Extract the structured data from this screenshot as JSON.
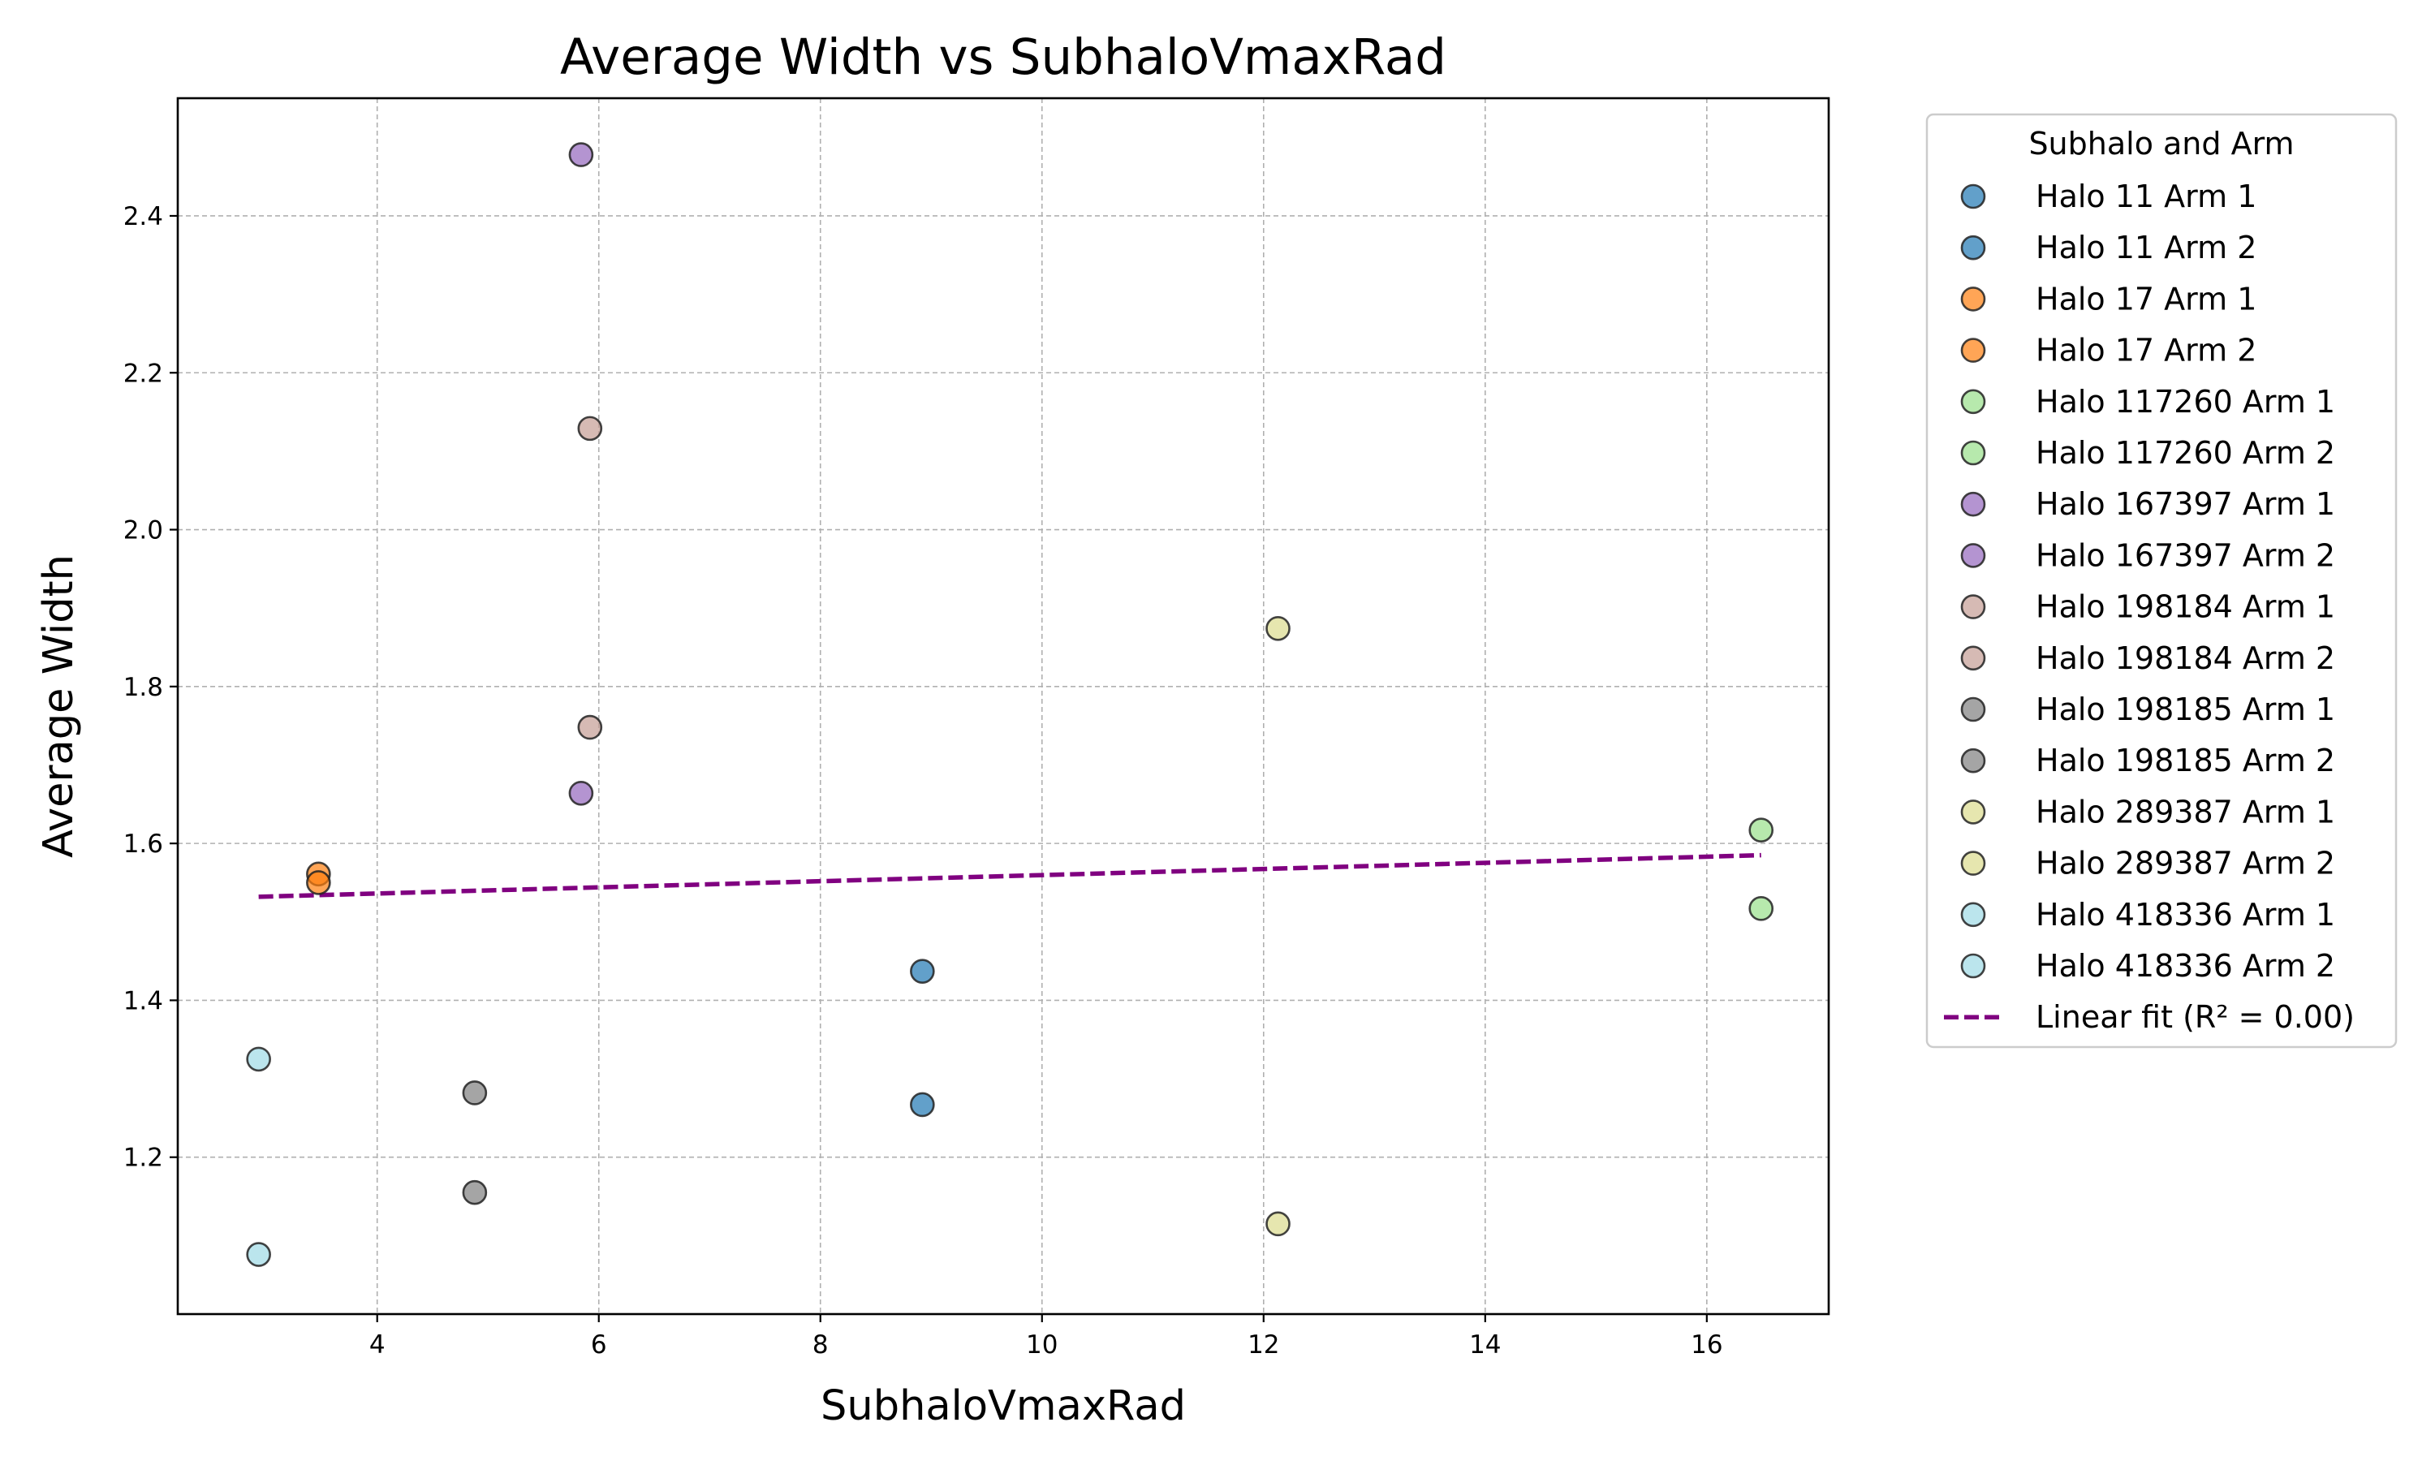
{
  "chart_data": {
    "type": "scatter",
    "title": "Average Width vs SubhaloVmaxRad",
    "xlabel": "SubhaloVmaxRad",
    "ylabel": "Average Width",
    "xlim": [
      2.2,
      17.1
    ],
    "ylim": [
      1.0,
      2.55
    ],
    "xticks": [
      4,
      6,
      8,
      10,
      12,
      14,
      16
    ],
    "yticks": [
      1.2,
      1.4,
      1.6,
      1.8,
      2.0,
      2.2,
      2.4
    ],
    "grid": true,
    "legend": {
      "title": "Subhalo and Arm",
      "placement": "outside-right"
    },
    "series": [
      {
        "name": "Halo 11 Arm 1",
        "color": "#1f77b4",
        "points": [
          [
            8.92,
            1.437
          ]
        ]
      },
      {
        "name": "Halo 11 Arm 2",
        "color": "#1f77b4",
        "points": [
          [
            8.92,
            1.267
          ]
        ]
      },
      {
        "name": "Halo 17 Arm 1",
        "color": "#ff7f0e",
        "points": [
          [
            3.47,
            1.561
          ]
        ]
      },
      {
        "name": "Halo 17 Arm 2",
        "color": "#ff7f0e",
        "points": [
          [
            3.47,
            1.55
          ]
        ]
      },
      {
        "name": "Halo 117260 Arm 1",
        "color": "#98df8a",
        "points": [
          [
            16.49,
            1.617
          ]
        ]
      },
      {
        "name": "Halo 117260 Arm 2",
        "color": "#98df8a",
        "points": [
          [
            16.49,
            1.517
          ]
        ]
      },
      {
        "name": "Halo 167397 Arm 1",
        "color": "#9467bd",
        "points": [
          [
            5.84,
            2.478
          ]
        ]
      },
      {
        "name": "Halo 167397 Arm 2",
        "color": "#9467bd",
        "points": [
          [
            5.84,
            1.664
          ]
        ]
      },
      {
        "name": "Halo 198184 Arm 1",
        "color": "#c49c94",
        "points": [
          [
            5.92,
            2.129
          ]
        ]
      },
      {
        "name": "Halo 198184 Arm 2",
        "color": "#c49c94",
        "points": [
          [
            5.92,
            1.748
          ]
        ]
      },
      {
        "name": "Halo 198185 Arm 1",
        "color": "#7f7f7f",
        "points": [
          [
            4.88,
            1.282
          ]
        ]
      },
      {
        "name": "Halo 198185 Arm 2",
        "color": "#7f7f7f",
        "points": [
          [
            4.88,
            1.155
          ]
        ]
      },
      {
        "name": "Halo 289387 Arm 1",
        "color": "#dbdb8d",
        "points": [
          [
            12.13,
            1.874
          ]
        ]
      },
      {
        "name": "Halo 289387 Arm 2",
        "color": "#dbdb8d",
        "points": [
          [
            12.13,
            1.115
          ]
        ]
      },
      {
        "name": "Halo 418336 Arm 1",
        "color": "#9edae5",
        "points": [
          [
            2.93,
            1.325
          ]
        ]
      },
      {
        "name": "Halo 418336 Arm 2",
        "color": "#9edae5",
        "points": [
          [
            2.93,
            1.076
          ]
        ]
      }
    ],
    "fit": {
      "name": "Linear fit (R² = 0.00)",
      "color": "#800080",
      "x": [
        2.93,
        16.49
      ],
      "y": [
        1.532,
        1.585
      ]
    }
  }
}
